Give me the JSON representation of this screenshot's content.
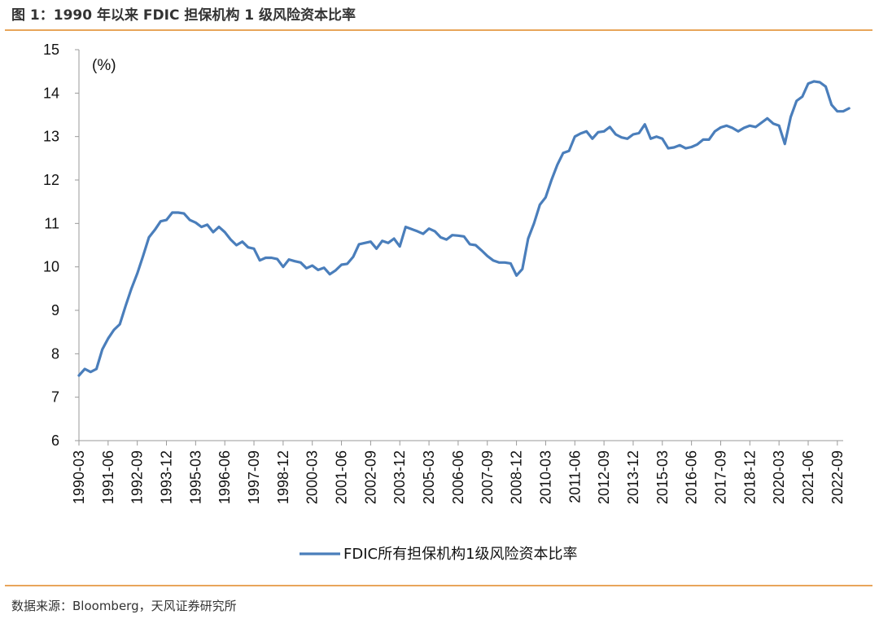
{
  "figure": {
    "title": "图 1：1990 年以来 FDIC 担保机构 1 级风险资本比率",
    "source": "数据来源：Bloomberg，天风证券研究所"
  },
  "chart_data": {
    "type": "line",
    "unit_label": "(%)",
    "ylim": [
      6,
      15
    ],
    "yticks": [
      6,
      7,
      8,
      9,
      10,
      11,
      12,
      13,
      14,
      15
    ],
    "xlim": [
      "1990-03",
      "2022-12"
    ],
    "xtick_labels": [
      "1990-03",
      "1991-06",
      "1992-09",
      "1993-12",
      "1995-03",
      "1996-06",
      "1997-09",
      "1998-12",
      "2000-03",
      "2001-06",
      "2002-09",
      "2003-12",
      "2005-03",
      "2006-06",
      "2007-09",
      "2008-12",
      "2010-03",
      "2011-06",
      "2012-09",
      "2013-12",
      "2015-03",
      "2016-06",
      "2017-09",
      "2018-12",
      "2020-03",
      "2021-06",
      "2022-09"
    ],
    "grid": false,
    "legend_position": "bottom-center",
    "series": [
      {
        "name": "FDIC所有担保机构1级风险资本比率",
        "color": "#4a7ebb",
        "points": [
          [
            "1990-03",
            7.5
          ],
          [
            "1990-06",
            7.65
          ],
          [
            "1990-09",
            7.58
          ],
          [
            "1990-12",
            7.65
          ],
          [
            "1991-03",
            8.1
          ],
          [
            "1991-06",
            8.35
          ],
          [
            "1991-09",
            8.55
          ],
          [
            "1991-12",
            8.68
          ],
          [
            "1992-03",
            9.1
          ],
          [
            "1992-06",
            9.5
          ],
          [
            "1992-09",
            9.85
          ],
          [
            "1992-12",
            10.25
          ],
          [
            "1993-03",
            10.68
          ],
          [
            "1993-06",
            10.85
          ],
          [
            "1993-09",
            11.05
          ],
          [
            "1993-12",
            11.08
          ],
          [
            "1994-03",
            11.25
          ],
          [
            "1994-06",
            11.25
          ],
          [
            "1994-09",
            11.23
          ],
          [
            "1994-12",
            11.08
          ],
          [
            "1995-03",
            11.02
          ],
          [
            "1995-06",
            10.92
          ],
          [
            "1995-09",
            10.97
          ],
          [
            "1995-12",
            10.8
          ],
          [
            "1996-03",
            10.92
          ],
          [
            "1996-06",
            10.8
          ],
          [
            "1996-09",
            10.63
          ],
          [
            "1996-12",
            10.5
          ],
          [
            "1997-03",
            10.58
          ],
          [
            "1997-06",
            10.45
          ],
          [
            "1997-09",
            10.42
          ],
          [
            "1997-12",
            10.15
          ],
          [
            "1998-03",
            10.21
          ],
          [
            "1998-06",
            10.21
          ],
          [
            "1998-09",
            10.18
          ],
          [
            "1998-12",
            10.0
          ],
          [
            "1999-03",
            10.17
          ],
          [
            "1999-06",
            10.13
          ],
          [
            "1999-09",
            10.1
          ],
          [
            "1999-12",
            9.97
          ],
          [
            "2000-03",
            10.03
          ],
          [
            "2000-06",
            9.93
          ],
          [
            "2000-09",
            9.98
          ],
          [
            "2000-12",
            9.83
          ],
          [
            "2001-03",
            9.92
          ],
          [
            "2001-06",
            10.05
          ],
          [
            "2001-09",
            10.07
          ],
          [
            "2001-12",
            10.23
          ],
          [
            "2002-03",
            10.52
          ],
          [
            "2002-06",
            10.55
          ],
          [
            "2002-09",
            10.58
          ],
          [
            "2002-12",
            10.42
          ],
          [
            "2003-03",
            10.6
          ],
          [
            "2003-06",
            10.55
          ],
          [
            "2003-09",
            10.65
          ],
          [
            "2003-12",
            10.47
          ],
          [
            "2004-03",
            10.92
          ],
          [
            "2004-06",
            10.87
          ],
          [
            "2004-09",
            10.82
          ],
          [
            "2004-12",
            10.76
          ],
          [
            "2005-03",
            10.88
          ],
          [
            "2005-06",
            10.82
          ],
          [
            "2005-09",
            10.68
          ],
          [
            "2005-12",
            10.63
          ],
          [
            "2006-03",
            10.73
          ],
          [
            "2006-06",
            10.72
          ],
          [
            "2006-09",
            10.7
          ],
          [
            "2006-12",
            10.52
          ],
          [
            "2007-03",
            10.5
          ],
          [
            "2007-06",
            10.38
          ],
          [
            "2007-09",
            10.25
          ],
          [
            "2007-12",
            10.15
          ],
          [
            "2008-03",
            10.1
          ],
          [
            "2008-06",
            10.1
          ],
          [
            "2008-09",
            10.08
          ],
          [
            "2008-12",
            9.8
          ],
          [
            "2009-03",
            9.95
          ],
          [
            "2009-06",
            10.65
          ],
          [
            "2009-09",
            11.0
          ],
          [
            "2009-12",
            11.43
          ],
          [
            "2010-03",
            11.6
          ],
          [
            "2010-06",
            12.0
          ],
          [
            "2010-09",
            12.35
          ],
          [
            "2010-12",
            12.62
          ],
          [
            "2011-03",
            12.67
          ],
          [
            "2011-06",
            13.0
          ],
          [
            "2011-09",
            13.07
          ],
          [
            "2011-12",
            13.12
          ],
          [
            "2012-03",
            12.95
          ],
          [
            "2012-06",
            13.1
          ],
          [
            "2012-09",
            13.12
          ],
          [
            "2012-12",
            13.22
          ],
          [
            "2013-03",
            13.05
          ],
          [
            "2013-06",
            12.98
          ],
          [
            "2013-09",
            12.95
          ],
          [
            "2013-12",
            13.05
          ],
          [
            "2014-03",
            13.08
          ],
          [
            "2014-06",
            13.28
          ],
          [
            "2014-09",
            12.95
          ],
          [
            "2014-12",
            13.0
          ],
          [
            "2015-03",
            12.95
          ],
          [
            "2015-06",
            12.73
          ],
          [
            "2015-09",
            12.75
          ],
          [
            "2015-12",
            12.8
          ],
          [
            "2016-03",
            12.73
          ],
          [
            "2016-06",
            12.76
          ],
          [
            "2016-09",
            12.82
          ],
          [
            "2016-12",
            12.93
          ],
          [
            "2017-03",
            12.93
          ],
          [
            "2017-06",
            13.12
          ],
          [
            "2017-09",
            13.21
          ],
          [
            "2017-12",
            13.25
          ],
          [
            "2018-03",
            13.2
          ],
          [
            "2018-06",
            13.12
          ],
          [
            "2018-09",
            13.2
          ],
          [
            "2018-12",
            13.25
          ],
          [
            "2019-03",
            13.22
          ],
          [
            "2019-06",
            13.32
          ],
          [
            "2019-09",
            13.42
          ],
          [
            "2019-12",
            13.3
          ],
          [
            "2020-03",
            13.25
          ],
          [
            "2020-06",
            12.83
          ],
          [
            "2020-09",
            13.45
          ],
          [
            "2020-12",
            13.82
          ],
          [
            "2021-03",
            13.92
          ],
          [
            "2021-06",
            14.22
          ],
          [
            "2021-09",
            14.27
          ],
          [
            "2021-12",
            14.25
          ],
          [
            "2022-03",
            14.15
          ],
          [
            "2022-06",
            13.73
          ],
          [
            "2022-09",
            13.58
          ],
          [
            "2022-12",
            13.58
          ],
          [
            "2023-03",
            13.65
          ]
        ]
      }
    ]
  }
}
